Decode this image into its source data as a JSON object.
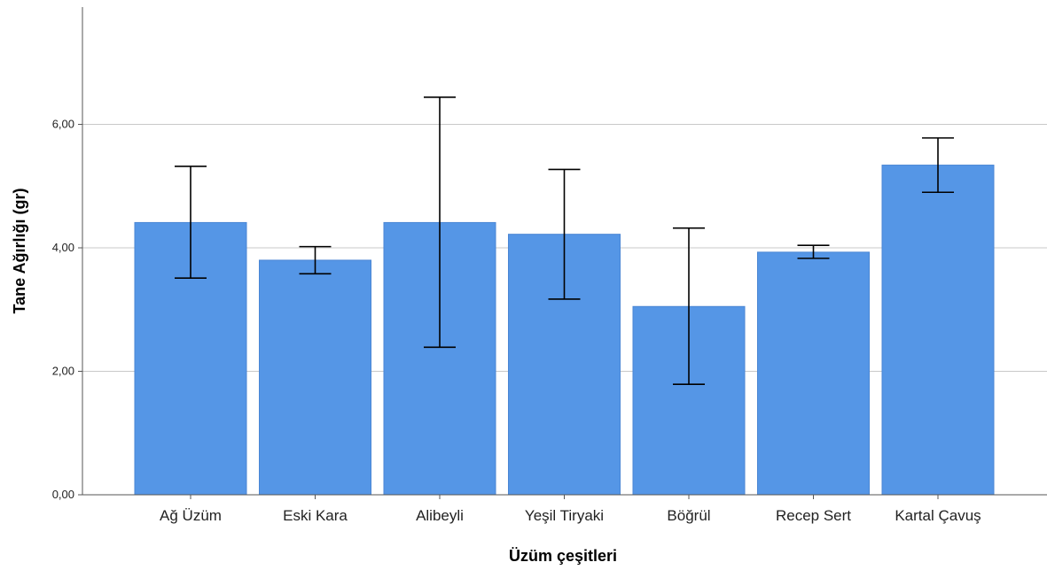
{
  "chart_data": {
    "type": "bar",
    "title": "",
    "xlabel": "Üzüm çeşitleri",
    "ylabel": "Tane Ağırlığı (gr)",
    "categories": [
      "Ağ Üzüm",
      "Eski Kara",
      "Alibeyli",
      "Yeşil Tiryaki",
      "Böğrül",
      "Recep Sert",
      "Kartal Çavuş"
    ],
    "values": [
      4.41,
      3.8,
      4.41,
      4.22,
      3.05,
      3.93,
      5.34
    ],
    "error_bars": {
      "lower": [
        3.51,
        3.58,
        2.39,
        3.17,
        1.79,
        3.83,
        4.9
      ],
      "upper": [
        5.32,
        4.02,
        6.44,
        5.27,
        4.32,
        4.04,
        5.78
      ]
    },
    "ylim": [
      0,
      7.9
    ],
    "yticks": [
      0,
      2,
      4,
      6
    ],
    "ytick_labels": [
      "0,00",
      "2,00",
      "4,00",
      "6,00"
    ],
    "grid": true,
    "colors": {
      "bar": "#5596e6",
      "bar_edge": "#4a86d4",
      "grid": "#c8c8c8",
      "axis": "#555555",
      "error": "#000000"
    }
  }
}
